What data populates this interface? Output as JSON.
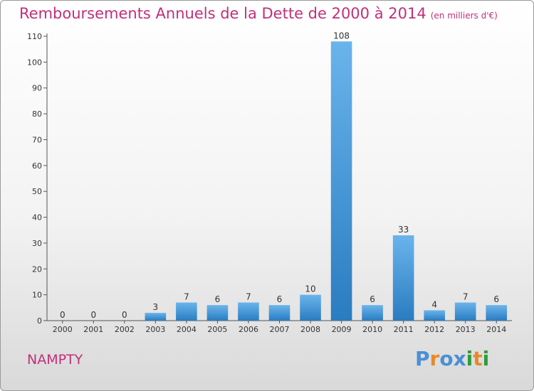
{
  "title": "Remboursements Annuels de la Dette de 2000 à 2014",
  "unit": "(en milliers d'€)",
  "commune": "NAMPTY",
  "logo": {
    "text": "Proxiti",
    "letter_colors": [
      "#4a8fd6",
      "#e8892b",
      "#4a8fd6",
      "#4a8fd6",
      "#2d9d3a",
      "#e8892b",
      "#2d9d3a"
    ]
  },
  "colors": {
    "title": "#c0307a",
    "bar_light": "#6ab4ec",
    "bar_dark": "#2a7cc0"
  },
  "chart_data": {
    "type": "bar",
    "title": "Remboursements Annuels de la Dette de 2000 à 2014",
    "xlabel": "",
    "ylabel": "",
    "categories": [
      "2000",
      "2001",
      "2002",
      "2003",
      "2004",
      "2005",
      "2006",
      "2007",
      "2008",
      "2009",
      "2010",
      "2011",
      "2012",
      "2013",
      "2014"
    ],
    "values": [
      0,
      0,
      0,
      3,
      7,
      6,
      7,
      6,
      10,
      108,
      6,
      33,
      4,
      7,
      6
    ],
    "ylim": [
      0,
      110
    ],
    "yticks": [
      0,
      10,
      20,
      30,
      40,
      50,
      60,
      70,
      80,
      90,
      100,
      110
    ],
    "grid": false,
    "legend": "none"
  }
}
